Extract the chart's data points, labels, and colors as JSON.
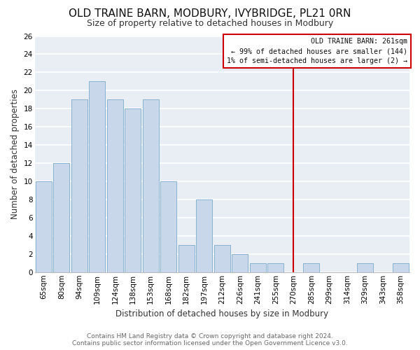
{
  "title": "OLD TRAINE BARN, MODBURY, IVYBRIDGE, PL21 0RN",
  "subtitle": "Size of property relative to detached houses in Modbury",
  "xlabel": "Distribution of detached houses by size in Modbury",
  "ylabel": "Number of detached properties",
  "bar_labels": [
    "65sqm",
    "80sqm",
    "94sqm",
    "109sqm",
    "124sqm",
    "138sqm",
    "153sqm",
    "168sqm",
    "182sqm",
    "197sqm",
    "212sqm",
    "226sqm",
    "241sqm",
    "255sqm",
    "270sqm",
    "285sqm",
    "299sqm",
    "314sqm",
    "329sqm",
    "343sqm",
    "358sqm"
  ],
  "bar_values": [
    10,
    12,
    19,
    21,
    19,
    18,
    19,
    10,
    3,
    8,
    3,
    2,
    1,
    1,
    0,
    1,
    0,
    0,
    1,
    0,
    1
  ],
  "bar_color": "#c8d8ea",
  "bar_edge_color": "#7aaac8",
  "ylim": [
    0,
    26
  ],
  "yticks": [
    0,
    2,
    4,
    6,
    8,
    10,
    12,
    14,
    16,
    18,
    20,
    22,
    24,
    26
  ],
  "vline_bar_index": 14,
  "vline_color": "#cc0000",
  "annotation_box_text": "OLD TRAINE BARN: 261sqm\n← 99% of detached houses are smaller (144)\n1% of semi-detached houses are larger (2) →",
  "annotation_box_color": "#cc0000",
  "footer_text": "Contains HM Land Registry data © Crown copyright and database right 2024.\nContains public sector information licensed under the Open Government Licence v3.0.",
  "background_color": "#ffffff",
  "plot_bg_color": "#e8eef4",
  "grid_color": "#ffffff",
  "title_fontsize": 11,
  "subtitle_fontsize": 9,
  "axis_label_fontsize": 8.5,
  "tick_fontsize": 7.5,
  "footer_fontsize": 6.5
}
